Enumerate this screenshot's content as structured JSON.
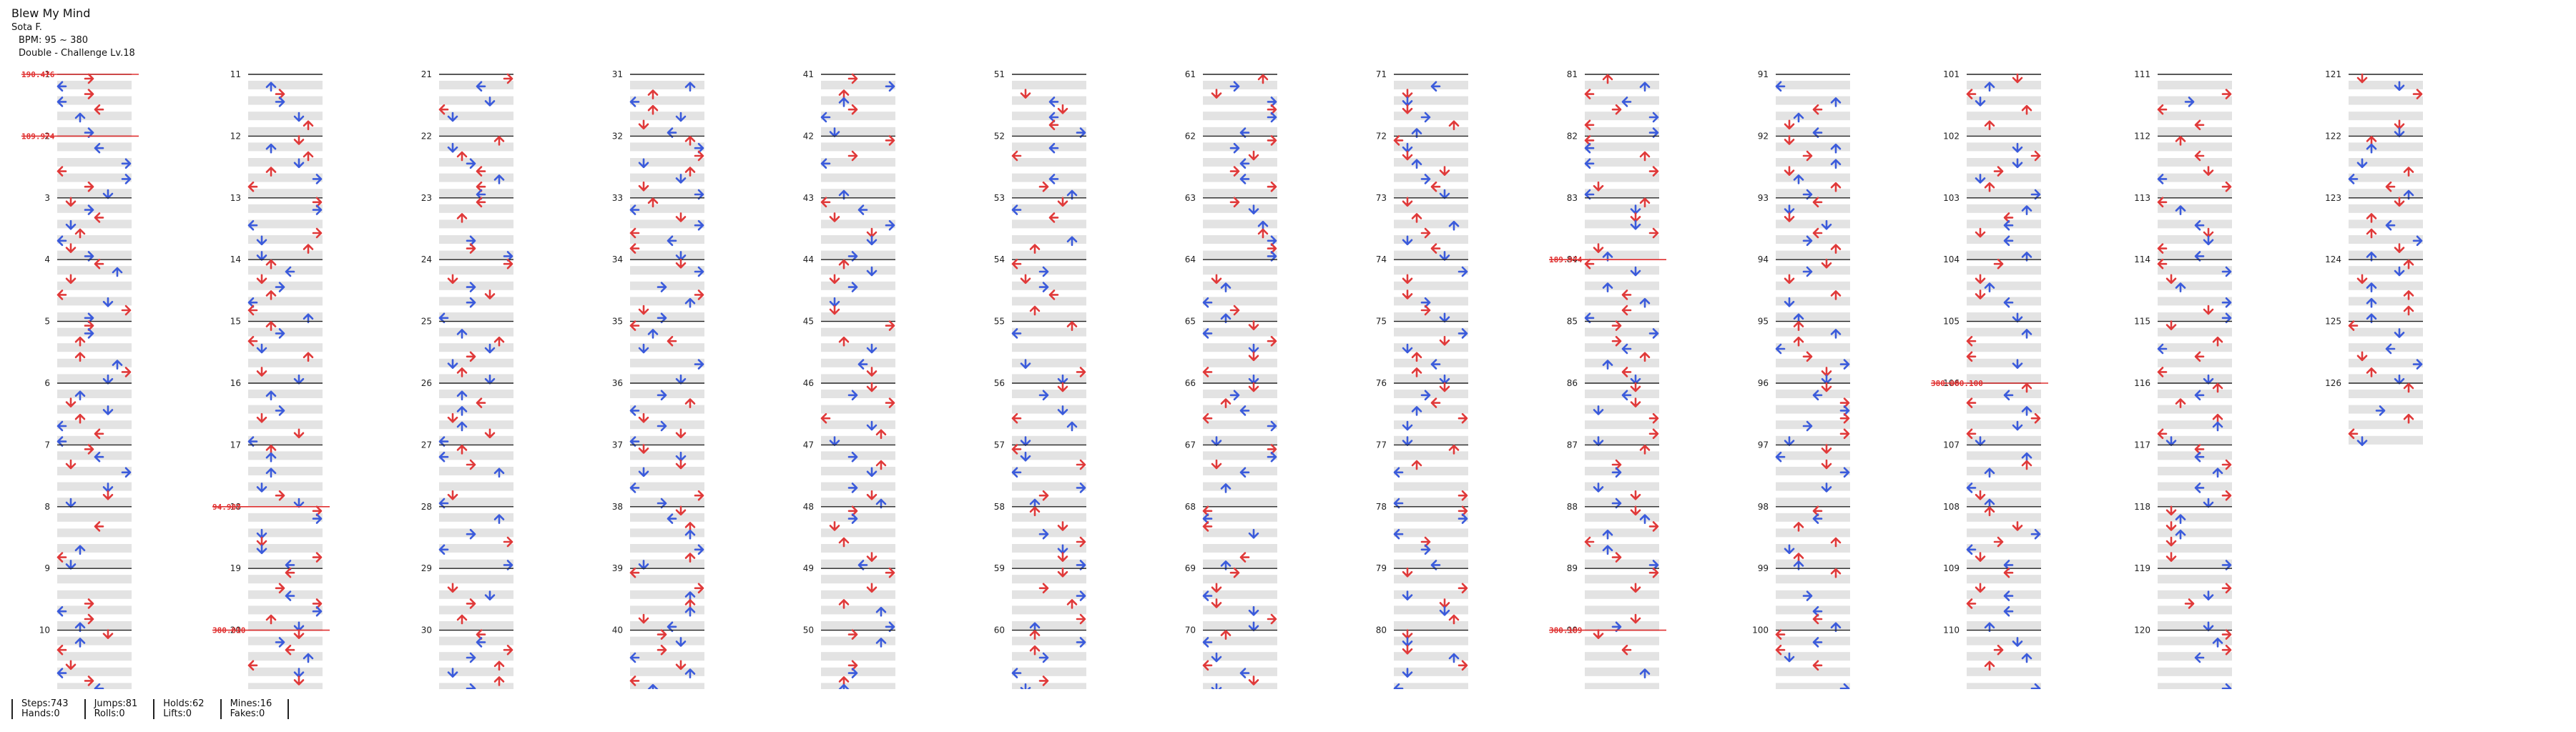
{
  "song": {
    "title": "Blew My Mind",
    "artist": "Sota F.",
    "bpm": "BPM: 95 ~ 380",
    "difficulty": "Double - Challenge  Lv.18"
  },
  "stats": {
    "steps": "Steps:743",
    "jumps": "Jumps:81",
    "holds": "Holds:62",
    "mines": "Mines:16",
    "hands": "Hands:0",
    "rolls": "Rolls:0",
    "lifts": "Lifts:0",
    "fakes": "Fakes:0"
  },
  "bpm_changes": [
    {
      "measure": 1,
      "label": "190.476"
    },
    {
      "measure": 2,
      "label": "189.974"
    },
    {
      "measure": 18,
      "label": "94.987"
    },
    {
      "measure": 20,
      "label": "380.010"
    },
    {
      "measure": 84,
      "label": "189.974"
    },
    {
      "measure": 90,
      "label": "380.189"
    },
    {
      "measure": 106,
      "label": "380.000.100"
    }
  ],
  "colors": {
    "quarter": "#e03a3a",
    "eighth": "#3b5bdb",
    "hold": "#a3e39a",
    "freeze_head": "#f2e56b",
    "mine": "#c0392b",
    "row_shade": "#e3e3e3",
    "bpm_line": "#e03030"
  },
  "columns": [
    {
      "first": 1,
      "last": 10
    },
    {
      "first": 11,
      "last": 20
    },
    {
      "first": 21,
      "last": 30
    },
    {
      "first": 31,
      "last": 40
    },
    {
      "first": 41,
      "last": 50
    },
    {
      "first": 51,
      "last": 60
    },
    {
      "first": 61,
      "last": 70
    },
    {
      "first": 71,
      "last": 80
    },
    {
      "first": 81,
      "last": 90
    },
    {
      "first": 91,
      "last": 100
    },
    {
      "first": 101,
      "last": 110
    },
    {
      "first": 111,
      "last": 120
    },
    {
      "first": 121,
      "last": 126
    }
  ]
}
